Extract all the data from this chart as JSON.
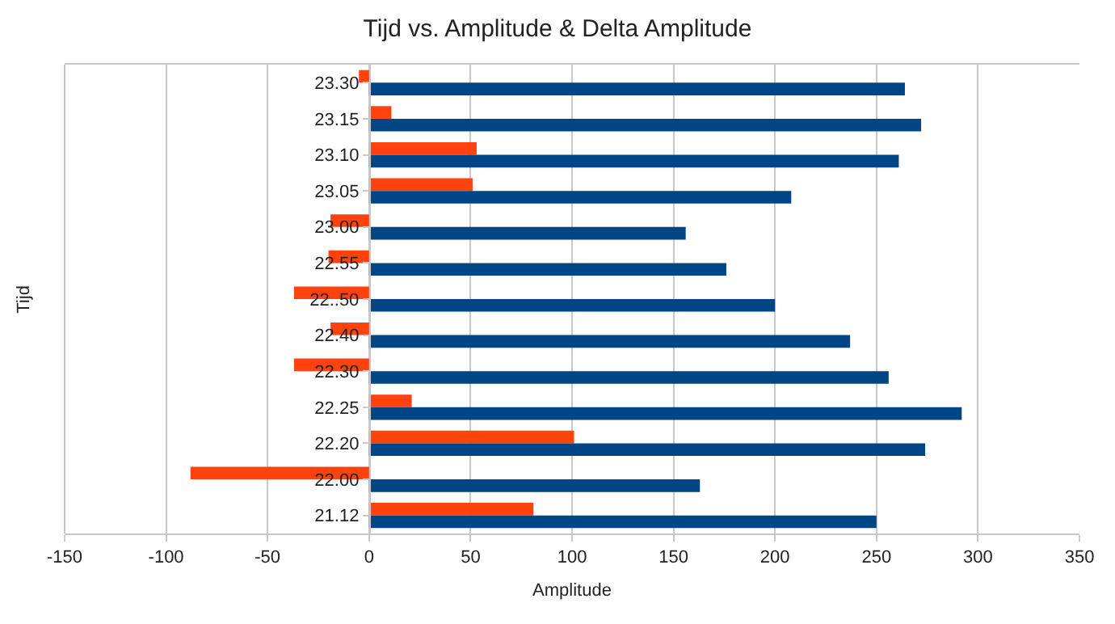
{
  "chart_data": {
    "type": "bar",
    "orientation": "horizontal",
    "title": "Tijd vs. Amplitude & Delta Amplitude",
    "xlabel": "Amplitude",
    "ylabel": "Tijd",
    "categories": [
      "23.30",
      "23.15",
      "23.10",
      "23.05",
      "23.00",
      "22.55",
      "22..50",
      "22.40",
      "22.30",
      "22.25",
      "22.20",
      "22.00",
      "21.12"
    ],
    "series": [
      {
        "color": "#ff420e",
        "values": [
          -5,
          11,
          53,
          51,
          -19,
          -20,
          -37,
          -19,
          -37,
          21,
          101,
          -88,
          81
        ]
      },
      {
        "color": "#004586",
        "values": [
          264,
          272,
          261,
          208,
          156,
          176,
          200,
          237,
          256,
          292,
          274,
          163,
          250
        ]
      }
    ],
    "xlim": [
      -150,
      350
    ],
    "xticks": [
      -150,
      -100,
      -50,
      0,
      50,
      100,
      150,
      200,
      250,
      300,
      350
    ],
    "grid": "x"
  }
}
